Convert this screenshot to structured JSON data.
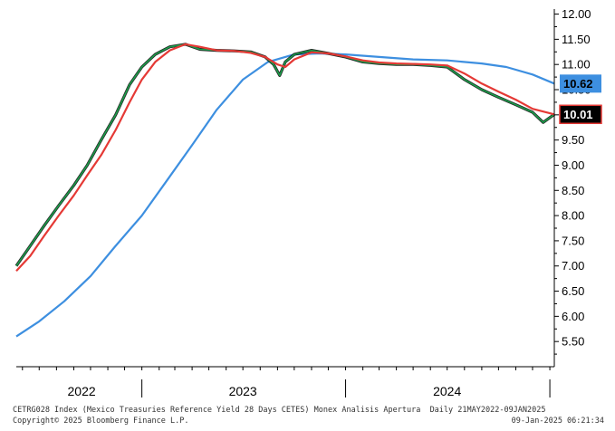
{
  "chart_data": {
    "type": "line",
    "ylim": [
      5.0,
      12.1
    ],
    "y_ticks": [
      "12.00",
      "11.50",
      "11.00",
      "10.50",
      "10.00",
      "9.50",
      "9.00",
      "8.50",
      "8.00",
      "7.50",
      "7.00",
      "6.50",
      "6.00",
      "5.50"
    ],
    "x_range": [
      "2022-05-21",
      "2025-01-09"
    ],
    "year_labels": [
      {
        "label": "2022",
        "date": "2022-09-15"
      },
      {
        "label": "2023",
        "date": "2023-07-01"
      },
      {
        "label": "2024",
        "date": "2024-07-01"
      }
    ],
    "year_separators": [
      "2023-01-01",
      "2024-01-01",
      "2025-01-01"
    ],
    "grid": false,
    "series": [
      {
        "color": "#1a9e4a",
        "points": [
          [
            "2022-05-21",
            7.0
          ],
          [
            "2022-06-15",
            7.4
          ],
          [
            "2022-07-10",
            7.8
          ],
          [
            "2022-08-05",
            8.2
          ],
          [
            "2022-09-01",
            8.6
          ],
          [
            "2022-09-25",
            9.0
          ],
          [
            "2022-10-20",
            9.5
          ],
          [
            "2022-11-15",
            10.0
          ],
          [
            "2022-12-10",
            10.6
          ],
          [
            "2023-01-01",
            10.95
          ],
          [
            "2023-01-25",
            11.2
          ],
          [
            "2023-02-20",
            11.35
          ],
          [
            "2023-03-20",
            11.4
          ],
          [
            "2023-04-15",
            11.3
          ],
          [
            "2023-05-15",
            11.28
          ],
          [
            "2023-06-15",
            11.27
          ],
          [
            "2023-07-15",
            11.25
          ],
          [
            "2023-08-10",
            11.15
          ],
          [
            "2023-08-25",
            11.0
          ],
          [
            "2023-09-05",
            10.78
          ],
          [
            "2023-09-15",
            11.05
          ],
          [
            "2023-10-01",
            11.2
          ],
          [
            "2023-11-01",
            11.28
          ],
          [
            "2023-12-01",
            11.22
          ],
          [
            "2024-01-01",
            11.15
          ],
          [
            "2024-02-01",
            11.05
          ],
          [
            "2024-03-01",
            11.02
          ],
          [
            "2024-04-01",
            11.0
          ],
          [
            "2024-05-01",
            11.0
          ],
          [
            "2024-06-01",
            10.98
          ],
          [
            "2024-07-01",
            10.95
          ],
          [
            "2024-08-01",
            10.7
          ],
          [
            "2024-09-01",
            10.5
          ],
          [
            "2024-10-01",
            10.35
          ],
          [
            "2024-11-01",
            10.2
          ],
          [
            "2024-12-01",
            10.05
          ],
          [
            "2024-12-20",
            9.85
          ],
          [
            "2025-01-09",
            10.01
          ]
        ]
      },
      {
        "color": "#e53935",
        "points": [
          [
            "2022-05-21",
            6.9
          ],
          [
            "2022-06-15",
            7.2
          ],
          [
            "2022-07-10",
            7.6
          ],
          [
            "2022-08-05",
            8.0
          ],
          [
            "2022-09-01",
            8.4
          ],
          [
            "2022-09-25",
            8.8
          ],
          [
            "2022-10-20",
            9.2
          ],
          [
            "2022-11-15",
            9.7
          ],
          [
            "2022-12-10",
            10.25
          ],
          [
            "2023-01-01",
            10.7
          ],
          [
            "2023-01-25",
            11.05
          ],
          [
            "2023-02-20",
            11.28
          ],
          [
            "2023-03-20",
            11.4
          ],
          [
            "2023-04-15",
            11.35
          ],
          [
            "2023-05-15",
            11.28
          ],
          [
            "2023-06-15",
            11.27
          ],
          [
            "2023-07-15",
            11.23
          ],
          [
            "2023-08-10",
            11.15
          ],
          [
            "2023-09-01",
            11.0
          ],
          [
            "2023-09-15",
            10.95
          ],
          [
            "2023-10-01",
            11.1
          ],
          [
            "2023-11-01",
            11.24
          ],
          [
            "2023-12-01",
            11.22
          ],
          [
            "2024-01-01",
            11.16
          ],
          [
            "2024-02-01",
            11.08
          ],
          [
            "2024-03-01",
            11.04
          ],
          [
            "2024-04-01",
            11.02
          ],
          [
            "2024-05-01",
            11.01
          ],
          [
            "2024-06-01",
            11.0
          ],
          [
            "2024-07-01",
            10.98
          ],
          [
            "2024-08-01",
            10.82
          ],
          [
            "2024-09-01",
            10.62
          ],
          [
            "2024-10-01",
            10.46
          ],
          [
            "2024-11-01",
            10.3
          ],
          [
            "2024-12-01",
            10.12
          ],
          [
            "2025-01-09",
            10.01
          ]
        ]
      },
      {
        "color": "#3d8fe0",
        "points": [
          [
            "2022-05-21",
            5.6
          ],
          [
            "2022-07-01",
            5.9
          ],
          [
            "2022-08-15",
            6.3
          ],
          [
            "2022-10-01",
            6.8
          ],
          [
            "2022-11-15",
            7.4
          ],
          [
            "2023-01-01",
            8.0
          ],
          [
            "2023-02-15",
            8.7
          ],
          [
            "2023-04-01",
            9.4
          ],
          [
            "2023-05-15",
            10.1
          ],
          [
            "2023-07-01",
            10.7
          ],
          [
            "2023-08-15",
            11.05
          ],
          [
            "2023-10-01",
            11.2
          ],
          [
            "2023-11-15",
            11.22
          ],
          [
            "2024-01-01",
            11.2
          ],
          [
            "2024-03-01",
            11.15
          ],
          [
            "2024-05-01",
            11.1
          ],
          [
            "2024-07-01",
            11.08
          ],
          [
            "2024-09-01",
            11.02
          ],
          [
            "2024-10-15",
            10.95
          ],
          [
            "2024-12-01",
            10.8
          ],
          [
            "2025-01-09",
            10.62
          ]
        ]
      }
    ],
    "last_values": [
      {
        "label": "10.62",
        "value": 10.62,
        "bg": "#3d8fe0",
        "fg": "#000000"
      },
      {
        "label": "10.01",
        "value": 10.01,
        "bg": "#000000",
        "fg": "#ffffff",
        "edge": "#e53935"
      }
    ]
  },
  "footer": {
    "line1": "CETRG028 Index (Mexico Treasuries Reference Yield 28 Days CETES) Monex Analisis Apertura  Daily 21MAY2022-09JAN2025",
    "line2_left": "Copyright© 2025 Bloomberg Finance L.P.",
    "line2_right": "09-Jan-2025 06:21:34"
  }
}
